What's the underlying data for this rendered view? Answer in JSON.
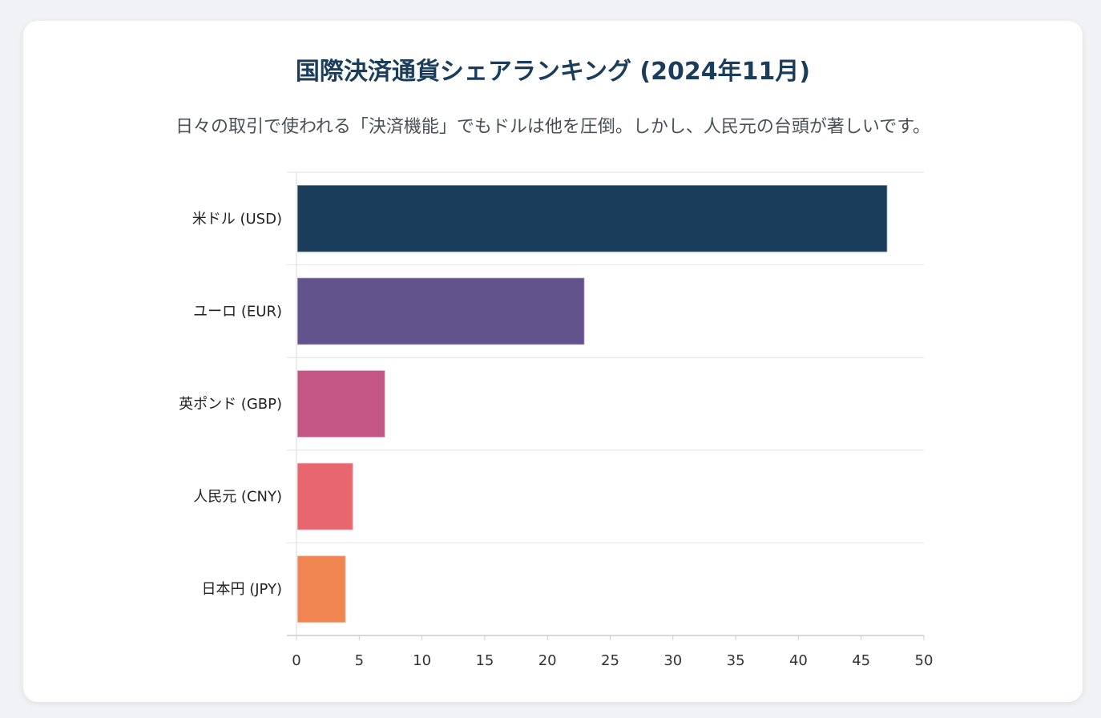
{
  "chart_data": {
    "type": "bar",
    "orientation": "horizontal",
    "title": "国際決済通貨シェアランキング (2024年11月)",
    "subtitle": "日々の取引で使われる「決済機能」でもドルは他を圧倒。しかし、人民元の台頭が著しいです。",
    "categories": [
      "米ドル (USD)",
      "ユーロ (EUR)",
      "英ポンド (GBP)",
      "人民元 (CNY)",
      "日本円 (JPY)"
    ],
    "values": [
      47.08,
      22.95,
      7.06,
      4.51,
      3.92
    ],
    "colors": [
      "#1b3d5c",
      "#63538d",
      "#c45786",
      "#e8676f",
      "#f08552"
    ],
    "xlim": [
      0,
      50
    ],
    "xticks": [
      0,
      5,
      10,
      15,
      20,
      25,
      30,
      35,
      40,
      45,
      50
    ],
    "grid": "horizontal",
    "legend": "none"
  }
}
